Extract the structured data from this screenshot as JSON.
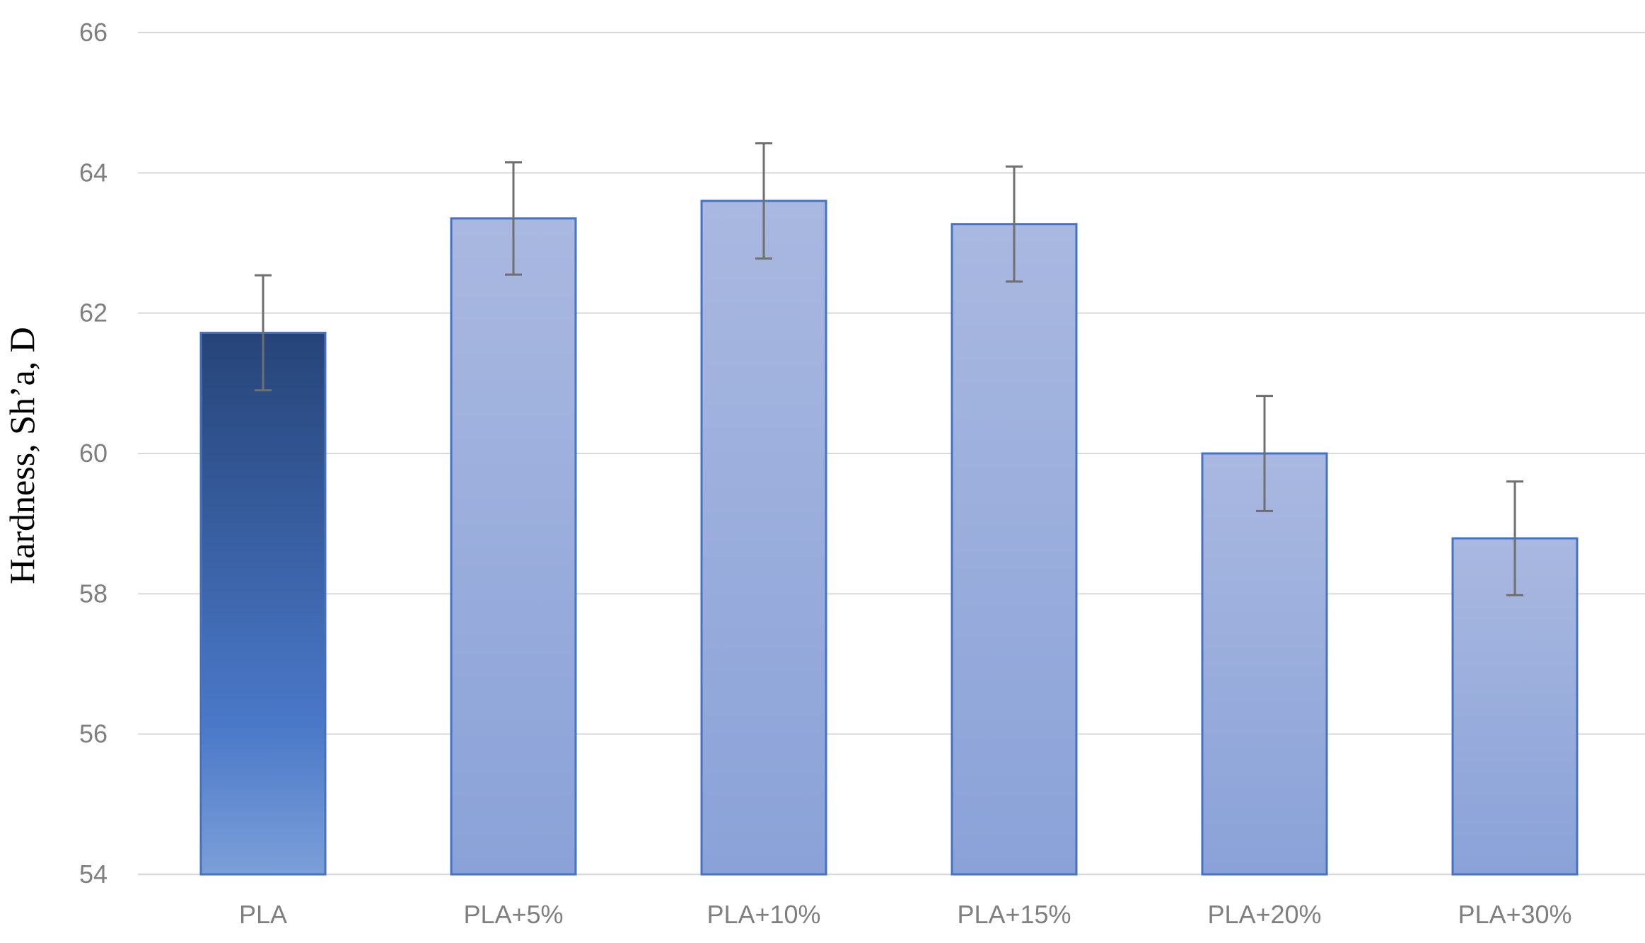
{
  "chart_data": {
    "type": "bar",
    "title": "",
    "xlabel": "",
    "ylabel": "Hardness, Sh’a, D",
    "ylim": [
      54,
      66
    ],
    "yticks": [
      54,
      56,
      58,
      60,
      62,
      64,
      66
    ],
    "grid": true,
    "categories": [
      "PLA",
      "PLA+5%",
      "PLA+10%",
      "PLA+15%",
      "PLA+20%",
      "PLA+30%"
    ],
    "values": [
      61.72,
      63.35,
      63.6,
      63.27,
      60.0,
      58.79
    ],
    "error": [
      0.82,
      0.8,
      0.82,
      0.82,
      0.82,
      0.81
    ],
    "colors": {
      "highlight_top": "#264478",
      "highlight_mid": "#4a78c8",
      "highlight_bottom": "#7b9fd8",
      "bar_top": "#a9b8e0",
      "bar_bottom": "#8aa2d8",
      "bar_border": "#4472c4",
      "error_bar": "#6f6f6f",
      "grid": "#d9d9d9",
      "tick_text": "#7f7f7f"
    }
  }
}
